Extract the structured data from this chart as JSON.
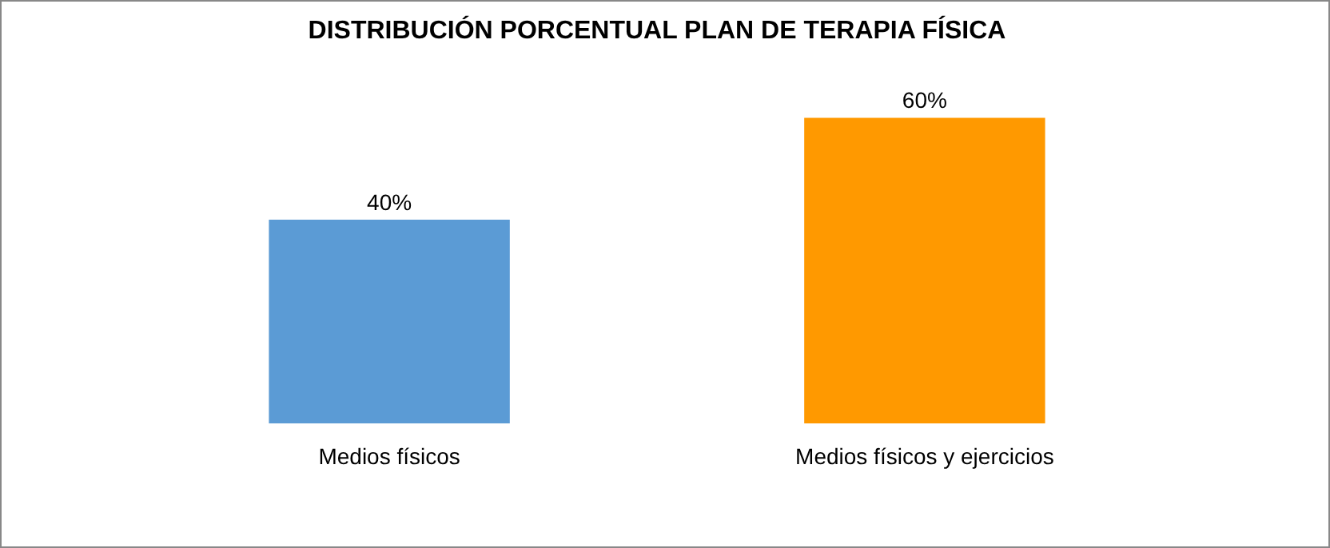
{
  "chart_data": {
    "type": "bar",
    "title": "DISTRIBUCIÓN PORCENTUAL PLAN DE TERAPIA FÍSICA",
    "categories": [
      "Medios físicos",
      "Medios físicos y ejercicios"
    ],
    "values": [
      40,
      60
    ],
    "colors": [
      "#5b9bd5",
      "#ff9900"
    ],
    "value_labels": [
      "40%",
      "60%"
    ]
  }
}
